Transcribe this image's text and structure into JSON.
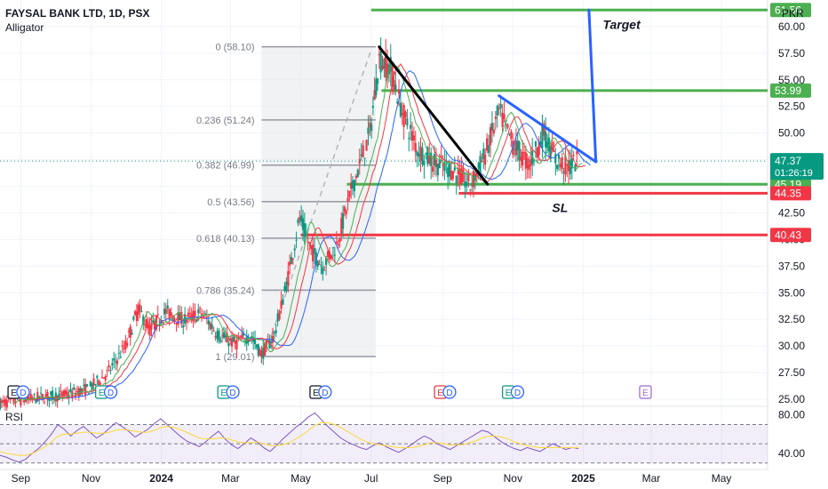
{
  "header": {
    "title": "FAYSAL BANK LTD, 1D, PSX",
    "indicator": "Alligator",
    "currency": "PKR",
    "rsi_label": "RSI"
  },
  "colors": {
    "up": "#089981",
    "down": "#f23645",
    "green_line": "#4caf50",
    "red_line": "#f23645",
    "blue_line": "#2962ff",
    "jaw": "#2962ff",
    "teeth": "#f23645",
    "lips": "#4caf50",
    "rsi_line": "#7e57c2",
    "rsi_ma": "#fdd835"
  },
  "chart_data": {
    "type": "candlestick",
    "symbol": "FAYSAL BANK LTD",
    "interval": "1D",
    "exchange": "PSX",
    "currency": "PKR",
    "y_axis": {
      "ticks": [
        "60.00",
        "57.50",
        "55.00",
        "52.50",
        "50.00",
        "47.50",
        "45.00",
        "42.50",
        "40.00",
        "37.50",
        "35.00",
        "32.50",
        "30.00",
        "27.50",
        "25.00"
      ],
      "range": [
        24.5,
        62.5
      ],
      "scale": "linear",
      "position": "right"
    },
    "x_axis": {
      "ticks": [
        {
          "label": "Sep",
          "date": "2023-09-01"
        },
        {
          "label": "Nov",
          "date": "2023-11-01"
        },
        {
          "label": "2024",
          "date": "2024-01-01"
        },
        {
          "label": "Mar",
          "date": "2024-03-01"
        },
        {
          "label": "May",
          "date": "2024-05-01"
        },
        {
          "label": "Jul",
          "date": "2024-07-01"
        },
        {
          "label": "Sep",
          "date": "2024-09-01"
        },
        {
          "label": "Nov",
          "date": "2024-11-01"
        },
        {
          "label": "2025",
          "date": "2025-01-01"
        },
        {
          "label": "Mar",
          "date": "2025-03-01"
        },
        {
          "label": "May",
          "date": "2025-05-01"
        }
      ],
      "range": [
        "2023-08-14",
        "2025-06-10"
      ]
    },
    "close_series": [
      {
        "date": "2023-08-14",
        "close": 24.6
      },
      {
        "date": "2023-09-01",
        "close": 24.9
      },
      {
        "date": "2023-09-20",
        "close": 25.2
      },
      {
        "date": "2023-10-10",
        "close": 25.4
      },
      {
        "date": "2023-10-30",
        "close": 26.0
      },
      {
        "date": "2023-11-15",
        "close": 27.4
      },
      {
        "date": "2023-12-01",
        "close": 30.0
      },
      {
        "date": "2023-12-12",
        "close": 33.5
      },
      {
        "date": "2023-12-22",
        "close": 31.5
      },
      {
        "date": "2024-01-05",
        "close": 33.2
      },
      {
        "date": "2024-01-20",
        "close": 32.4
      },
      {
        "date": "2024-02-05",
        "close": 33.1
      },
      {
        "date": "2024-02-20",
        "close": 31.0
      },
      {
        "date": "2024-03-05",
        "close": 30.2
      },
      {
        "date": "2024-03-18",
        "close": 31.0
      },
      {
        "date": "2024-03-28",
        "close": 29.2
      },
      {
        "date": "2024-04-08",
        "close": 31.0
      },
      {
        "date": "2024-04-20",
        "close": 36.5
      },
      {
        "date": "2024-04-30",
        "close": 42.0
      },
      {
        "date": "2024-05-10",
        "close": 39.0
      },
      {
        "date": "2024-05-20",
        "close": 37.5
      },
      {
        "date": "2024-06-01",
        "close": 39.5
      },
      {
        "date": "2024-06-15",
        "close": 45.0
      },
      {
        "date": "2024-06-30",
        "close": 50.0
      },
      {
        "date": "2024-07-08",
        "close": 57.0
      },
      {
        "date": "2024-07-18",
        "close": 56.0
      },
      {
        "date": "2024-07-28",
        "close": 52.0
      },
      {
        "date": "2024-08-10",
        "close": 48.5
      },
      {
        "date": "2024-08-25",
        "close": 47.2
      },
      {
        "date": "2024-09-10",
        "close": 46.5
      },
      {
        "date": "2024-09-25",
        "close": 45.0
      },
      {
        "date": "2024-10-08",
        "close": 48.0
      },
      {
        "date": "2024-10-20",
        "close": 52.0
      },
      {
        "date": "2024-11-01",
        "close": 49.0
      },
      {
        "date": "2024-11-15",
        "close": 47.0
      },
      {
        "date": "2024-11-28",
        "close": 50.0
      },
      {
        "date": "2024-12-08",
        "close": 47.5
      },
      {
        "date": "2024-12-18",
        "close": 46.8
      },
      {
        "date": "2024-12-28",
        "close": 47.37
      }
    ],
    "fibonacci": {
      "start_date": "2024-03-28",
      "end_date": "2024-07-05",
      "levels": [
        {
          "ratio": "0",
          "price": 58.1,
          "label": "0 (58.10)"
        },
        {
          "ratio": "0.236",
          "price": 51.24,
          "label": "0.236 (51.24)"
        },
        {
          "ratio": "0.382",
          "price": 46.99,
          "label": "0.382 (46.99)"
        },
        {
          "ratio": "0.5",
          "price": 43.56,
          "label": "0.5 (43.56)"
        },
        {
          "ratio": "0.618",
          "price": 40.13,
          "label": "0.618 (40.13)"
        },
        {
          "ratio": "0.786",
          "price": 35.24,
          "label": "0.786 (35.24)"
        },
        {
          "ratio": "1",
          "price": 29.01,
          "label": "1 (29.01)"
        }
      ]
    },
    "horizontal_lines": [
      {
        "price": 61.56,
        "label": "61.56",
        "color": "#4caf50",
        "start_date": "2024-07-01"
      },
      {
        "price": 53.99,
        "label": "53.99",
        "color": "#4caf50",
        "start_date": "2024-07-10"
      },
      {
        "price": 45.19,
        "label": "45.19",
        "color": "#4caf50",
        "start_date": "2024-06-10"
      },
      {
        "price": 44.35,
        "label": "44.35",
        "color": "#f23645",
        "start_date": "2024-09-15"
      },
      {
        "price": 40.43,
        "label": "40.43",
        "color": "#f23645",
        "start_date": "2024-05-01"
      }
    ],
    "current_price": {
      "price": 47.37,
      "label": "47.37",
      "countdown": "01:26:19"
    },
    "trend_lines": [
      {
        "color": "#000000",
        "from": {
          "date": "2024-07-08",
          "price": 58.1
        },
        "to": {
          "date": "2024-10-10",
          "price": 45.2
        }
      },
      {
        "color": "#2962ff",
        "from": {
          "date": "2024-10-20",
          "price": 53.5
        },
        "to": {
          "date": "2025-01-12",
          "price": 47.3
        }
      },
      {
        "color": "#2962ff",
        "from": {
          "date": "2025-01-12",
          "price": 47.3
        },
        "to": {
          "date": "2025-01-06",
          "price": 61.56
        }
      }
    ],
    "annotations": [
      {
        "text": "Target",
        "date": "2025-01-18",
        "price": 59.8
      },
      {
        "text": "SL",
        "date": "2024-12-05",
        "price": 42.6
      }
    ],
    "events": [
      {
        "type": "E",
        "date": "2023-08-26",
        "variant": "dark"
      },
      {
        "type": "D",
        "date": "2023-09-03",
        "variant": "blue"
      },
      {
        "type": "E",
        "date": "2023-11-10",
        "variant": "green"
      },
      {
        "type": "D",
        "date": "2023-11-18",
        "variant": "blue"
      },
      {
        "type": "E",
        "date": "2024-02-24",
        "variant": "green"
      },
      {
        "type": "D",
        "date": "2024-03-03",
        "variant": "blue"
      },
      {
        "type": "E",
        "date": "2024-05-14",
        "variant": "dark"
      },
      {
        "type": "D",
        "date": "2024-05-22",
        "variant": "blue"
      },
      {
        "type": "E",
        "date": "2024-08-30",
        "variant": "red"
      },
      {
        "type": "D",
        "date": "2024-09-07",
        "variant": "blue"
      },
      {
        "type": "E",
        "date": "2024-10-28",
        "variant": "green"
      },
      {
        "type": "D",
        "date": "2024-11-05",
        "variant": "blue"
      },
      {
        "type": "E",
        "date": "2025-02-24",
        "variant": "purple"
      }
    ],
    "rsi": {
      "ticks": [
        "80.00",
        "40.00"
      ],
      "band": [
        70,
        30
      ],
      "range": [
        27,
        88
      ],
      "values": [
        38,
        36,
        33,
        31,
        34,
        40,
        45,
        52,
        60,
        70,
        65,
        58,
        64,
        68,
        62,
        56,
        60,
        66,
        72,
        68,
        63,
        57,
        61,
        65,
        71,
        76,
        70,
        64,
        58,
        53,
        50,
        47,
        52,
        58,
        63,
        55,
        49,
        45,
        50,
        56,
        52,
        46,
        42,
        48,
        55,
        61,
        67,
        72,
        78,
        82,
        75,
        68,
        62,
        56,
        52,
        49,
        46,
        44,
        48,
        51,
        47,
        44,
        41,
        45,
        49,
        54,
        58,
        55,
        50,
        47,
        44,
        48,
        52,
        56,
        60,
        64,
        62,
        57,
        52,
        48,
        45,
        43,
        46,
        44,
        42,
        46,
        50,
        47,
        44,
        46,
        45
      ]
    },
    "rsi_ma_values": [
      42,
      40,
      39,
      38,
      38,
      40,
      43,
      47,
      52,
      58,
      60,
      60,
      61,
      62,
      62,
      61,
      61,
      62,
      64,
      65,
      64,
      63,
      62,
      62,
      64,
      67,
      68,
      67,
      65,
      62,
      59,
      56,
      55,
      55,
      56,
      56,
      54,
      52,
      51,
      51,
      52,
      50,
      48,
      48,
      49,
      51,
      55,
      59,
      64,
      69,
      72,
      72,
      70,
      67,
      63,
      59,
      55,
      52,
      50,
      49,
      48,
      47,
      46,
      46,
      46,
      47,
      49,
      51,
      51,
      50,
      49,
      49,
      49,
      51,
      53,
      56,
      58,
      58,
      57,
      55,
      52,
      50,
      48,
      47,
      46,
      46,
      46,
      46,
      46,
      46,
      46
    ]
  }
}
